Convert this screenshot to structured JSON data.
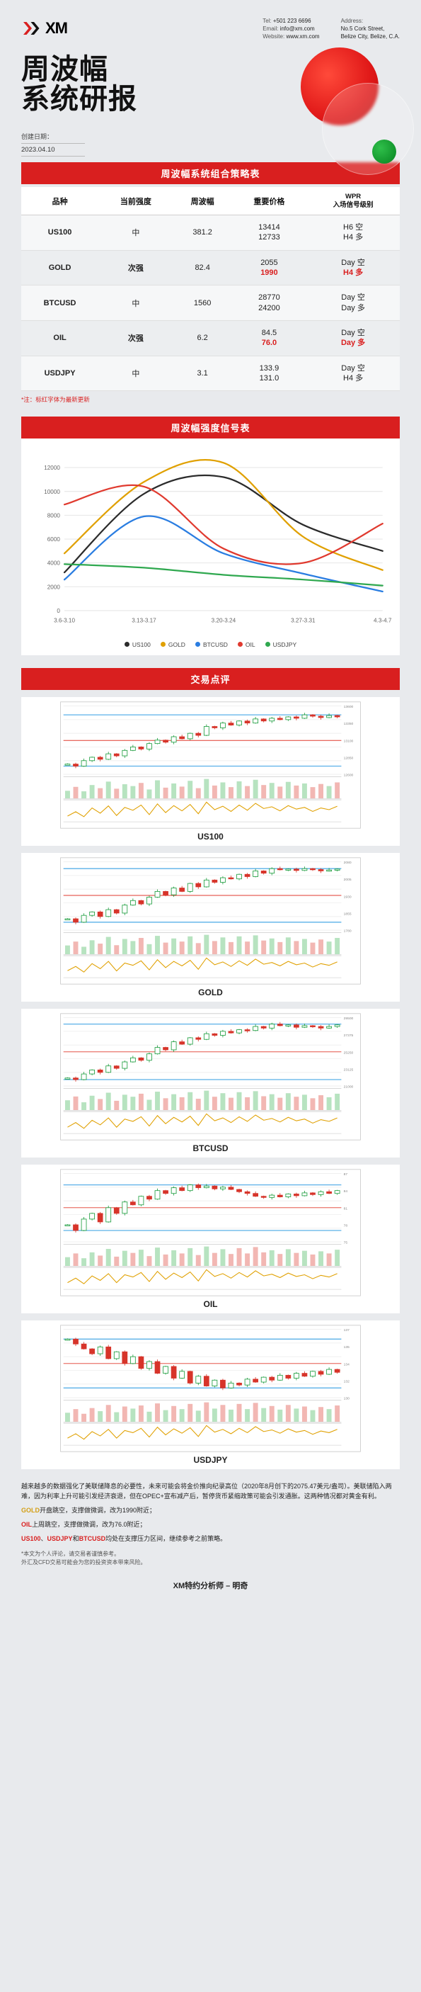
{
  "header": {
    "logo_text": "XM",
    "tel_label": "Tel:",
    "tel": "+501 223 6696",
    "email_label": "Email:",
    "email": "info@xm.com",
    "web_label": "Website:",
    "web": "www.xm.com",
    "addr_label": "Address:",
    "addr1": "No.5 Cork Street,",
    "addr2": "Belize City, Belize, C.A."
  },
  "title": {
    "line1": "周波幅",
    "line2": "系统研报"
  },
  "date": {
    "label": "创建日期：",
    "value": "2023.04.10"
  },
  "section1_title": "周波幅系统组合策略表",
  "strat_table": {
    "columns": [
      "品种",
      "当前强度",
      "周波幅",
      "重要价格",
      "WPR\n入场信号级别"
    ],
    "rows": [
      {
        "sym": "US100",
        "strength": "中",
        "strength_class": "",
        "range": "381.2",
        "prices": [
          "13414",
          "12733"
        ],
        "price_red": [
          false,
          false
        ],
        "signals": [
          "H6 空",
          "H4 多"
        ],
        "sig_red": [
          false,
          false
        ]
      },
      {
        "sym": "GOLD",
        "strength": "次强",
        "strength_class": "strong-green",
        "range": "82.4",
        "prices": [
          "2055",
          "1990"
        ],
        "price_red": [
          false,
          true
        ],
        "signals": [
          "Day 空",
          "H4 多"
        ],
        "sig_red": [
          false,
          true
        ]
      },
      {
        "sym": "BTCUSD",
        "strength": "中",
        "strength_class": "",
        "range": "1560",
        "prices": [
          "28770",
          "24200"
        ],
        "price_red": [
          false,
          false
        ],
        "signals": [
          "Day 空",
          "Day 多"
        ],
        "sig_red": [
          false,
          false
        ]
      },
      {
        "sym": "OIL",
        "strength": "次强",
        "strength_class": "strong-green",
        "range": "6.2",
        "prices": [
          "84.5",
          "76.0"
        ],
        "price_red": [
          false,
          true
        ],
        "signals": [
          "Day 空",
          "Day 多"
        ],
        "sig_red": [
          false,
          true
        ]
      },
      {
        "sym": "USDJPY",
        "strength": "中",
        "strength_class": "",
        "range": "3.1",
        "prices": [
          "133.9",
          "131.0"
        ],
        "price_red": [
          false,
          false
        ],
        "signals": [
          "Day 空",
          "H4 多"
        ],
        "sig_red": [
          false,
          false
        ]
      }
    ],
    "footnote": "*注：标红字体为最新更新"
  },
  "section2_title": "周波幅强度信号表",
  "signal_chart": {
    "x_labels": [
      "3.6-3.10",
      "3.13-3.17",
      "3.20-3.24",
      "3.27-3.31",
      "4.3-4.7"
    ],
    "y_ticks": [
      0,
      2000,
      4000,
      6000,
      8000,
      10000,
      12000
    ],
    "ylim": [
      0,
      13000
    ],
    "grid_color": "#e6e6e6",
    "axis_color": "#bfbfbf",
    "tick_fontsize": 8,
    "series": [
      {
        "name": "US100",
        "color": "#2b2b2b",
        "values": [
          3200,
          9800,
          11200,
          7200,
          5000
        ]
      },
      {
        "name": "GOLD",
        "color": "#e0a000",
        "values": [
          4800,
          10800,
          12400,
          6200,
          3400
        ]
      },
      {
        "name": "BTCUSD",
        "color": "#2a7de1",
        "values": [
          2600,
          7900,
          4800,
          3100,
          1600
        ]
      },
      {
        "name": "OIL",
        "color": "#e03a2f",
        "values": [
          8900,
          10400,
          5200,
          4000,
          7300
        ]
      },
      {
        "name": "USDJPY",
        "color": "#2fa84f",
        "values": [
          3900,
          3600,
          3000,
          2600,
          2100
        ]
      }
    ]
  },
  "section3_title": "交易点评",
  "trade_charts": [
    {
      "caption": "US100",
      "overlay1": "#5ab0e8",
      "overlay2": "#e03a2f",
      "candles": [
        12750,
        12720,
        12800,
        12850,
        12820,
        12900,
        12870,
        12950,
        13000,
        12970,
        13050,
        13100,
        13070,
        13150,
        13120,
        13200,
        13170,
        13300,
        13280,
        13350,
        13320,
        13380,
        13350,
        13410,
        13380,
        13420,
        13400,
        13440,
        13420,
        13470,
        13450,
        13430,
        13460,
        13440
      ],
      "ylim": [
        12600,
        13600
      ],
      "vol": [
        30,
        45,
        28,
        52,
        40,
        65,
        38,
        55,
        48,
        60,
        35,
        70,
        42,
        58,
        46,
        68,
        40,
        75,
        50,
        62,
        44,
        66,
        48,
        72,
        52,
        60,
        46,
        64,
        50,
        58,
        44,
        56,
        48,
        62
      ],
      "osc": [
        20,
        35,
        18,
        48,
        30,
        55,
        22,
        50,
        40,
        58,
        25,
        62,
        32,
        56,
        38,
        60,
        28,
        68,
        42,
        54,
        36,
        58,
        40,
        64,
        46,
        52,
        38,
        56,
        44,
        50,
        36,
        48,
        42,
        54
      ]
    },
    {
      "caption": "GOLD",
      "overlay1": "#5ab0e8",
      "overlay2": "#e03a2f",
      "candles": [
        1830,
        1815,
        1845,
        1860,
        1840,
        1870,
        1855,
        1890,
        1910,
        1895,
        1925,
        1950,
        1935,
        1965,
        1950,
        1985,
        1970,
        2000,
        1990,
        2010,
        2005,
        2025,
        2015,
        2040,
        2030,
        2050,
        2045,
        2048,
        2042,
        2050,
        2046,
        2040,
        2044,
        2048
      ],
      "ylim": [
        1780,
        2080
      ],
      "vol": [
        35,
        50,
        30,
        55,
        42,
        68,
        36,
        60,
        52,
        64,
        40,
        72,
        46,
        62,
        50,
        70,
        44,
        76,
        52,
        66,
        48,
        70,
        50,
        74,
        54,
        62,
        48,
        66,
        52,
        60,
        46,
        58,
        50,
        64
      ],
      "osc": [
        25,
        40,
        20,
        50,
        32,
        58,
        24,
        52,
        44,
        60,
        28,
        64,
        36,
        58,
        42,
        62,
        30,
        70,
        46,
        56,
        40,
        60,
        44,
        66,
        48,
        54,
        42,
        58,
        46,
        52,
        38,
        50,
        44,
        56
      ]
    },
    {
      "caption": "BTCUSD",
      "overlay1": "#5ab0e8",
      "overlay2": "#e03a2f",
      "candles": [
        22000,
        21800,
        22500,
        23000,
        22700,
        23500,
        23200,
        24000,
        24500,
        24200,
        25000,
        25800,
        25500,
        26500,
        26200,
        27000,
        26800,
        27500,
        27300,
        27800,
        27600,
        28000,
        27900,
        28400,
        28200,
        28700,
        28500,
        28600,
        28300,
        28500,
        28400,
        28200,
        28400,
        28600
      ],
      "ylim": [
        21000,
        29500
      ],
      "vol": [
        40,
        55,
        32,
        58,
        45,
        70,
        38,
        62,
        54,
        66,
        42,
        74,
        48,
        64,
        52,
        72,
        46,
        78,
        54,
        68,
        50,
        72,
        52,
        76,
        56,
        64,
        50,
        68,
        54,
        62,
        48,
        60,
        52,
        66
      ],
      "osc": [
        22,
        38,
        18,
        46,
        30,
        54,
        22,
        50,
        42,
        58,
        26,
        62,
        34,
        56,
        40,
        60,
        28,
        68,
        44,
        54,
        38,
        58,
        42,
        64,
        46,
        52,
        40,
        56,
        44,
        50,
        36,
        48,
        42,
        54
      ]
    },
    {
      "caption": "OIL",
      "overlay1": "#5ab0e8",
      "overlay2": "#e03a2f",
      "candles": [
        78,
        77,
        79,
        80,
        78.5,
        81,
        80,
        82,
        81.5,
        83,
        82.5,
        84,
        83.5,
        84.5,
        84,
        85,
        84.5,
        84.8,
        84.3,
        84.6,
        84.2,
        83.8,
        83.5,
        83,
        82.8,
        83.2,
        82.9,
        83.4,
        83.1,
        83.6,
        83.3,
        83.8,
        83.5,
        84
      ],
      "ylim": [
        75,
        87
      ],
      "vol": [
        34,
        48,
        30,
        52,
        40,
        65,
        36,
        58,
        50,
        62,
        38,
        70,
        44,
        60,
        48,
        68,
        42,
        74,
        50,
        64,
        46,
        68,
        48,
        72,
        52,
        60,
        46,
        64,
        50,
        58,
        44,
        56,
        48,
        62
      ],
      "osc": [
        24,
        40,
        20,
        48,
        32,
        56,
        24,
        52,
        44,
        60,
        28,
        64,
        36,
        58,
        42,
        62,
        30,
        70,
        46,
        56,
        40,
        60,
        44,
        66,
        48,
        54,
        42,
        58,
        46,
        52,
        38,
        50,
        44,
        56
      ]
    },
    {
      "caption": "USDJPY",
      "overlay1": "#5ab0e8",
      "overlay2": "#e03a2f",
      "candles": [
        136,
        135.5,
        135,
        134.5,
        135.2,
        134,
        134.7,
        133.5,
        134.2,
        133,
        133.7,
        132.5,
        133.2,
        132,
        132.7,
        131.5,
        132.2,
        131.2,
        131.8,
        131,
        131.5,
        131.3,
        131.9,
        131.6,
        132.1,
        131.8,
        132.3,
        132,
        132.5,
        132.2,
        132.7,
        132.4,
        132.9,
        132.6
      ],
      "ylim": [
        130,
        137
      ],
      "vol": [
        36,
        50,
        32,
        54,
        42,
        66,
        38,
        60,
        52,
        64,
        40,
        72,
        46,
        62,
        50,
        70,
        44,
        76,
        52,
        66,
        48,
        70,
        50,
        74,
        54,
        62,
        48,
        66,
        52,
        60,
        46,
        58,
        50,
        64
      ],
      "osc": [
        26,
        42,
        22,
        50,
        34,
        58,
        26,
        54,
        46,
        62,
        30,
        66,
        38,
        60,
        44,
        64,
        32,
        72,
        48,
        58,
        42,
        62,
        46,
        68,
        50,
        56,
        44,
        60,
        48,
        54,
        40,
        52,
        46,
        58
      ]
    }
  ],
  "commentary": {
    "p1": "越来越多的数据强化了美联储降息的必要性，未来可能会将金价推向纪录高位（2020年8月创下的2075.47美元/盎司）。美联储陷入两难，因为利率上升可能引发经济衰退，但在OPEC+宣布减产后，暂停货币紧缩政策可能会引发通胀。这两种情况都对黄金有利。",
    "p2a": "GOLD",
    "p2b": "开盘跳空，支撑做微调，改为1990附近；",
    "p3a": "OIL",
    "p3b": "上周跳空，支撑做微调，改为76.0附近；",
    "p4a": "US100",
    "p4b": "、",
    "p4c": "USDJPY",
    "p4d": "和",
    "p4e": "BTCUSD",
    "p4f": "均处在支撑压力区间，继续参考之前策略。",
    "disclaimer": "*本文为个人评论，请交易者谨慎参考。\n 外汇及CFD交易可能会为您的投资资本带来风险。",
    "author": "XM特约分析师 – 明奇"
  }
}
